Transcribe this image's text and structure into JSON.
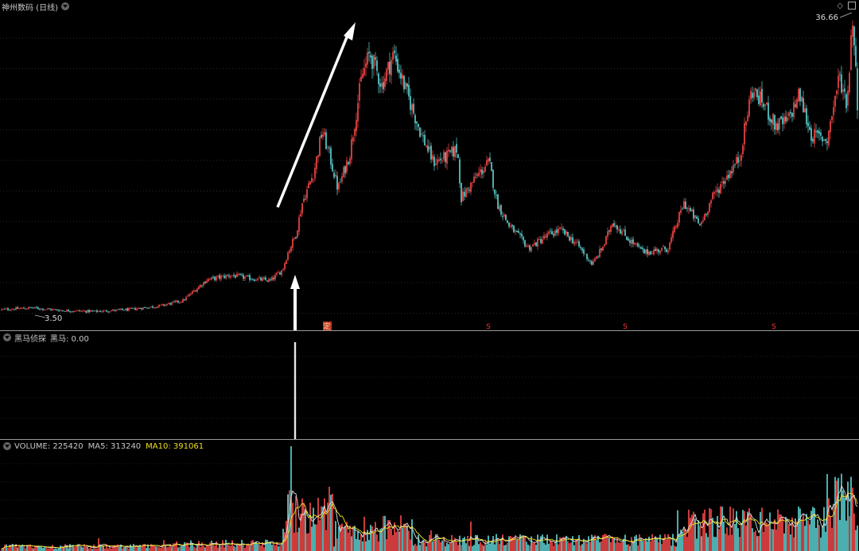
{
  "main": {
    "title": "神州数码 (日线)",
    "price_high_label": "36.66",
    "price_low_label": "3.50",
    "signal_marks": [
      "定",
      "S",
      "S",
      "S"
    ]
  },
  "indicator": {
    "label": "黑马侦探",
    "value_label": "黑马: 0.00"
  },
  "volume": {
    "label": "VOLUME: 225420",
    "ma5_label": "MA5: 313240",
    "ma10_label": "MA10: 391061"
  },
  "colors": {
    "up": "#ff4a4a",
    "down": "#5fd9d9",
    "ma5": "#e0e0e0",
    "ma10": "#f0e020",
    "arrow": "#ffffff",
    "grid": "#2a2a2a"
  },
  "chart_data": [
    {
      "type": "candlestick",
      "title": "神州数码 (日线)",
      "ylim": [
        3.5,
        36.66
      ],
      "annotations": [
        "36.66",
        "3.50"
      ],
      "trend_keypoints": [
        [
          0,
          4.2
        ],
        [
          40,
          4.4
        ],
        [
          80,
          4.1
        ],
        [
          120,
          4.0
        ],
        [
          160,
          4.2
        ],
        [
          200,
          4.6
        ],
        [
          230,
          5.2
        ],
        [
          260,
          7.5
        ],
        [
          290,
          8.0
        ],
        [
          320,
          7.6
        ],
        [
          340,
          7.4
        ],
        [
          355,
          8.6
        ],
        [
          362,
          10.5
        ],
        [
          372,
          12.5
        ],
        [
          380,
          16.0
        ],
        [
          395,
          19.5
        ],
        [
          405,
          24.0
        ],
        [
          415,
          21.0
        ],
        [
          425,
          17.5
        ],
        [
          440,
          21.5
        ],
        [
          455,
          30.0
        ],
        [
          465,
          32.5
        ],
        [
          480,
          29.0
        ],
        [
          495,
          32.5
        ],
        [
          510,
          28.5
        ],
        [
          530,
          23.5
        ],
        [
          545,
          20.5
        ],
        [
          560,
          21.0
        ],
        [
          575,
          22.0
        ],
        [
          580,
          16.5
        ],
        [
          600,
          19.0
        ],
        [
          615,
          20.5
        ],
        [
          625,
          16.0
        ],
        [
          640,
          13.5
        ],
        [
          665,
          11.0
        ],
        [
          690,
          12.5
        ],
        [
          705,
          13.0
        ],
        [
          725,
          11.5
        ],
        [
          745,
          9.2
        ],
        [
          760,
          11.5
        ],
        [
          770,
          14.0
        ],
        [
          790,
          12.0
        ],
        [
          810,
          10.5
        ],
        [
          840,
          11.0
        ],
        [
          860,
          16.0
        ],
        [
          880,
          13.5
        ],
        [
          895,
          16.5
        ],
        [
          910,
          18.5
        ],
        [
          930,
          21.0
        ],
        [
          945,
          28.5
        ],
        [
          960,
          27.0
        ],
        [
          975,
          24.5
        ],
        [
          990,
          25.0
        ],
        [
          1005,
          28.0
        ],
        [
          1020,
          23.5
        ],
        [
          1040,
          23.0
        ],
        [
          1055,
          30.0
        ],
        [
          1065,
          27.0
        ],
        [
          1072,
          36.66
        ],
        [
          1080,
          24.0
        ]
      ]
    },
    {
      "type": "bar",
      "title": "黑马侦探",
      "series": [
        {
          "name": "黑马",
          "values": [
            0.0
          ]
        }
      ],
      "signal_bar_x": 371
    },
    {
      "type": "bar",
      "title": "VOLUME",
      "series": [
        {
          "name": "VOLUME",
          "values": [
            225420
          ]
        },
        {
          "name": "MA5",
          "values": [
            313240
          ]
        },
        {
          "name": "MA10",
          "values": [
            391061
          ]
        }
      ]
    }
  ]
}
